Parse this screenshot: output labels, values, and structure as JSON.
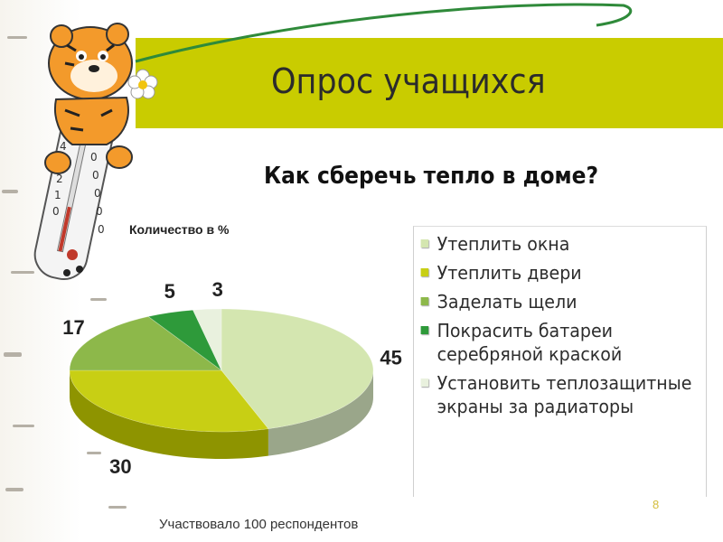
{
  "slide": {
    "title": "Опрос учащихся",
    "page_number": "8",
    "footer": "Участвовало 100 респондентов",
    "band_color": "#c9cc00"
  },
  "chart_data": {
    "type": "pie",
    "title": "Как сберечь тепло в доме?",
    "ylabel": "Количество в %",
    "legend_position": "right",
    "slices": [
      {
        "label": "Утеплить окна",
        "value": 45,
        "color": "#d4e6b0",
        "side": "#9aa68a"
      },
      {
        "label": "Утеплить двери",
        "value": 30,
        "color": "#c8cf14",
        "side": "#8e9400"
      },
      {
        "label": "Заделать щели",
        "value": 17,
        "color": "#8db84a",
        "side": "#5f7f2e"
      },
      {
        "label": "Покрасить батареи серебряной краской",
        "value": 5,
        "color": "#2e9a3a",
        "side": "#1c6326"
      },
      {
        "label": "Установить теплозащитные экраны за радиаторы",
        "value": 3,
        "color": "#e9f1de",
        "side": "#a9b39c"
      }
    ]
  }
}
